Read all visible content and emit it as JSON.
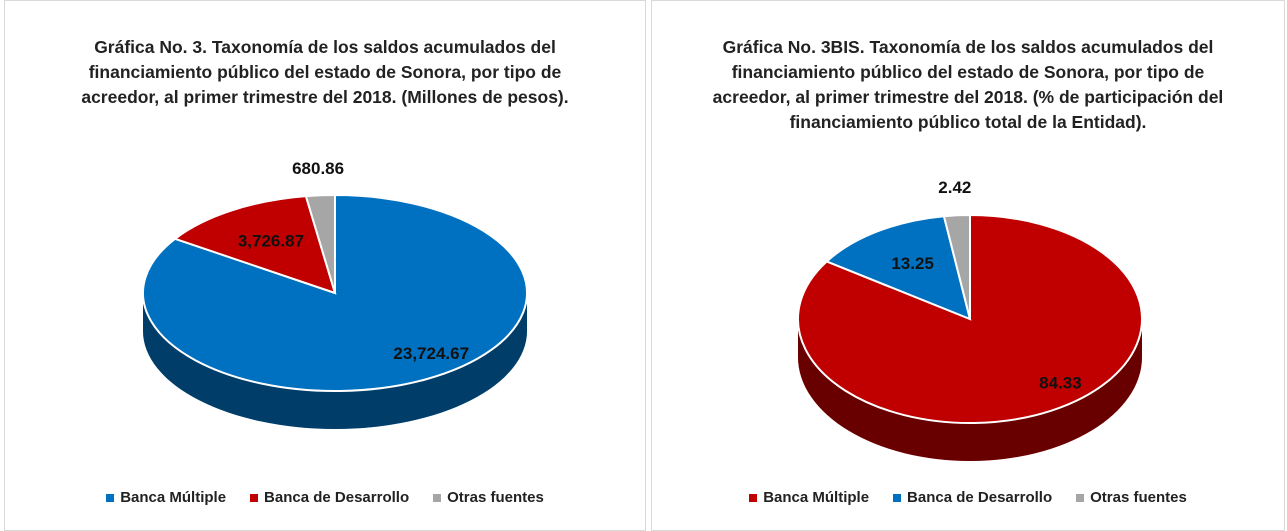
{
  "chart_data": [
    {
      "type": "pie",
      "title": "Gráfica No. 3. Taxonomía de los saldos acumulados del financiamiento público del estado de Sonora, por tipo de acreedor, al primer trimestre del 2018. (Millones de pesos).",
      "categories": [
        "Banca Múltiple",
        "Banca de Desarrollo",
        "Otras fuentes"
      ],
      "values": [
        23724.67,
        3726.87,
        680.86
      ],
      "value_labels": [
        "23,724.67",
        "3,726.87",
        "680.86"
      ],
      "colors": [
        "#0070c0",
        "#c00000",
        "#a6a6a6"
      ]
    },
    {
      "type": "pie",
      "title": "Gráfica No. 3BIS. Taxonomía de los saldos acumulados del financiamiento público del estado de Sonora, por tipo de acreedor, al primer trimestre del 2018. (% de participación del financiamiento público total de la Entidad).",
      "categories": [
        "Banca Múltiple",
        "Banca de Desarrollo",
        "Otras fuentes"
      ],
      "values": [
        84.33,
        13.25,
        2.42
      ],
      "colors": [
        "#c00000",
        "#0070c0",
        "#a6a6a6"
      ]
    }
  ]
}
